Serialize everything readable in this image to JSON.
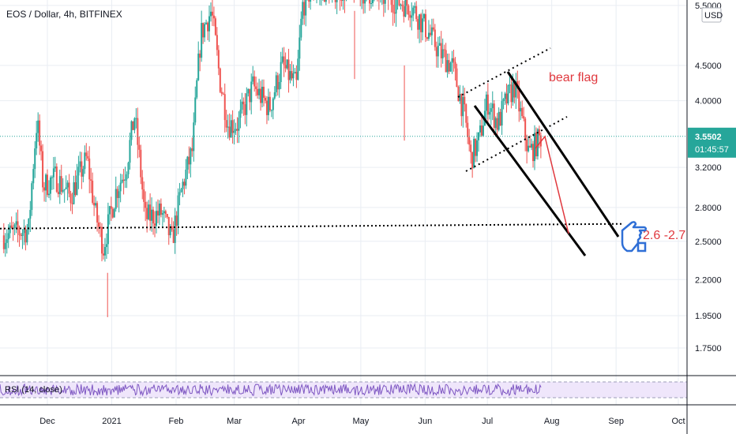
{
  "chart_data": {
    "type": "candlestick",
    "title": "EOS / Dollar, 4h, BITFINEX",
    "currency": "USD",
    "y_scale": "log",
    "ylim": [
      1.6,
      5.6
    ],
    "y_ticks": [
      "5.5000",
      "4.5000",
      "4.0000",
      "3.2000",
      "2.8000",
      "2.5000",
      "2.2000",
      "1.9500",
      "1.7500"
    ],
    "y_tick_values": [
      5.5,
      4.5,
      4.0,
      3.2,
      2.8,
      2.5,
      2.2,
      1.95,
      1.75
    ],
    "x_ticks": [
      "Dec",
      "2021",
      "Feb",
      "Mar",
      "Apr",
      "May",
      "Jun",
      "Jul",
      "Aug",
      "Sep",
      "Oct"
    ],
    "x_tick_dates": [
      "2020-12-01",
      "2021-01-01",
      "2021-02-01",
      "2021-03-01",
      "2021-04-01",
      "2021-05-01",
      "2021-06-01",
      "2021-07-01",
      "2021-08-01",
      "2021-09-01",
      "2021-10-01"
    ],
    "last_price": "3.5502",
    "countdown": "01:45:57",
    "price_path": [
      [
        "2020-11-10",
        2.55
      ],
      [
        "2020-11-22",
        2.6
      ],
      [
        "2020-11-26",
        3.75
      ],
      [
        "2020-11-29",
        3.0
      ],
      [
        "2020-12-05",
        3.1
      ],
      [
        "2020-12-12",
        2.9
      ],
      [
        "2020-12-20",
        3.3
      ],
      [
        "2020-12-24",
        2.75
      ],
      [
        "2020-12-28",
        2.45
      ],
      [
        "2021-01-03",
        2.95
      ],
      [
        "2021-01-08",
        3.2
      ],
      [
        "2021-01-12",
        3.8
      ],
      [
        "2021-01-17",
        2.7
      ],
      [
        "2021-01-25",
        2.75
      ],
      [
        "2021-01-30",
        2.5
      ],
      [
        "2021-02-04",
        3.0
      ],
      [
        "2021-02-09",
        3.4
      ],
      [
        "2021-02-13",
        5.0
      ],
      [
        "2021-02-18",
        5.4
      ],
      [
        "2021-02-22",
        4.3
      ],
      [
        "2021-02-26",
        3.7
      ],
      [
        "2021-03-03",
        3.7
      ],
      [
        "2021-03-10",
        4.2
      ],
      [
        "2021-03-18",
        3.9
      ],
      [
        "2021-03-24",
        4.5
      ],
      [
        "2021-03-31",
        4.2
      ],
      [
        "2021-04-03",
        5.5
      ],
      [
        "2021-04-07",
        5.8
      ],
      [
        "2021-05-01",
        5.8
      ],
      [
        "2021-05-25",
        5.5
      ],
      [
        "2021-06-03",
        5.0
      ],
      [
        "2021-06-08",
        4.7
      ],
      [
        "2021-06-14",
        4.5
      ],
      [
        "2021-06-20",
        3.8
      ],
      [
        "2021-06-23",
        3.3
      ],
      [
        "2021-06-27",
        3.5
      ],
      [
        "2021-07-01",
        4.0
      ],
      [
        "2021-07-06",
        3.7
      ],
      [
        "2021-07-10",
        4.0
      ],
      [
        "2021-07-14",
        4.2
      ],
      [
        "2021-07-18",
        3.7
      ],
      [
        "2021-07-21",
        3.35
      ],
      [
        "2021-07-24",
        3.45
      ],
      [
        "2021-07-27",
        3.55
      ]
    ],
    "annotations": [
      {
        "type": "text",
        "text": "bear flag"
      },
      {
        "type": "text",
        "text": "2.6 -2.7"
      },
      {
        "type": "support-line",
        "price": 2.65
      }
    ],
    "indicator": {
      "name": "RSI (14, close)",
      "upper": 70,
      "lower": 30
    },
    "grid": true
  },
  "colors": {
    "up": "#26a69a",
    "down": "#ef5350",
    "grid": "#e9edf3",
    "price_badge": "#26a69a",
    "annotation": "#e0383e",
    "rsi_line": "#7e57c2",
    "rsi_band": "#efe6fb",
    "pointer_icon": "#2f6fd6"
  },
  "icons": {
    "pointer": "hand-pointing-icon"
  }
}
